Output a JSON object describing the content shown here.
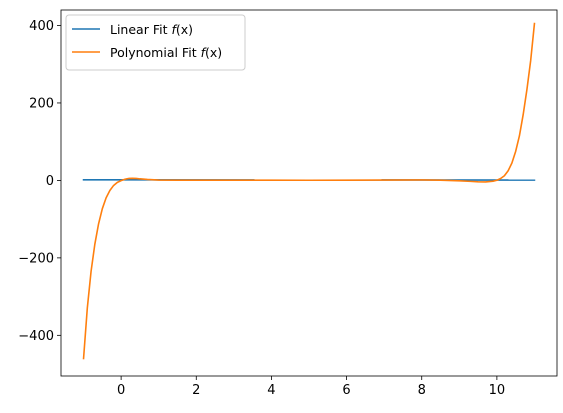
{
  "chart_data": {
    "type": "line",
    "title": "",
    "xlabel": "",
    "ylabel": "",
    "xlim": [
      -1.6,
      11.6
    ],
    "ylim": [
      -505,
      440
    ],
    "grid": false,
    "xticks": [
      0,
      2,
      4,
      6,
      8,
      10
    ],
    "xtick_labels": [
      "0",
      "2",
      "4",
      "6",
      "8",
      "10"
    ],
    "yticks": [
      -400,
      -200,
      0,
      200,
      400
    ],
    "ytick_labels": [
      "−400",
      "−200",
      "0",
      "200",
      "400"
    ],
    "legend": {
      "location": "top-left",
      "entries": [
        {
          "prefix": "Linear Fit ",
          "func": "f",
          "arg": "(x)",
          "suffix": ")",
          "color": "#1f77b4"
        },
        {
          "prefix": "Polynomial Fit ",
          "func": "f",
          "arg": "(x)",
          "suffix": ")",
          "color": "#ff7f0e"
        }
      ]
    },
    "series": [
      {
        "name": "Linear Fit f(x)",
        "color": "#1f77b4",
        "x": [
          -1,
          11
        ],
        "y": [
          1.5,
          1.0
        ]
      },
      {
        "name": "Polynomial Fit f(x)",
        "color": "#ff7f0e",
        "x": [
          -1.0,
          -0.9,
          -0.8,
          -0.7,
          -0.6,
          -0.5,
          -0.4,
          -0.3,
          -0.2,
          -0.1,
          0.0,
          0.1,
          0.2,
          0.3,
          0.4,
          0.5,
          0.7,
          1.0,
          1.5,
          2.0,
          3.0,
          4.0,
          5.0,
          6.0,
          7.0,
          8.0,
          8.5,
          9.0,
          9.3,
          9.5,
          9.7,
          9.9,
          10.0,
          10.1,
          10.2,
          10.3,
          10.4,
          10.5,
          10.6,
          10.7,
          10.8,
          10.9,
          11.0
        ],
        "y": [
          -460,
          -330,
          -235,
          -165,
          -112,
          -73,
          -45,
          -26,
          -13,
          -5,
          -0.5,
          3,
          5,
          5.5,
          5,
          4,
          2.5,
          1,
          0.5,
          0.5,
          0.6,
          0.5,
          0.4,
          0.6,
          0.8,
          1.2,
          0.5,
          -1,
          -2.5,
          -3.5,
          -4,
          -2,
          0.5,
          5,
          12,
          25,
          45,
          75,
          115,
          170,
          235,
          310,
          405
        ]
      }
    ]
  }
}
